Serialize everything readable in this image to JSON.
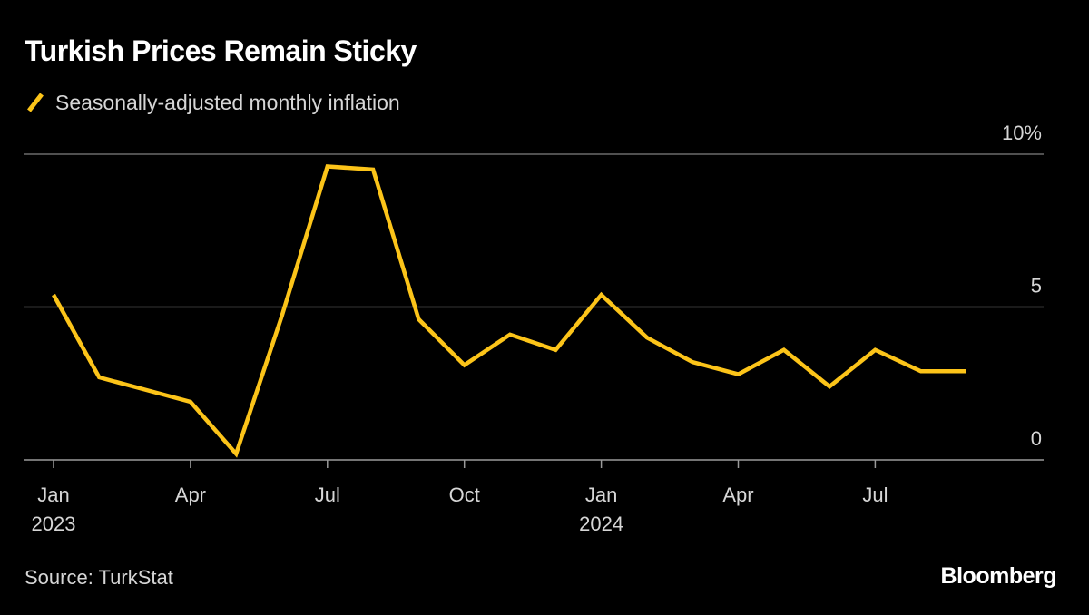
{
  "title": "Turkish Prices Remain Sticky",
  "source": "Source: TurkStat",
  "brand": "Bloomberg",
  "colors": {
    "background": "#000000",
    "series": "#fcc419",
    "grid": "#6b6b6b",
    "axis": "#9a9a9a",
    "text_primary": "#ffffff",
    "text_secondary": "#d6d6d6"
  },
  "chart_data": {
    "type": "line",
    "x": [
      "2023-01",
      "2023-02",
      "2023-03",
      "2023-04",
      "2023-05",
      "2023-06",
      "2023-07",
      "2023-08",
      "2023-09",
      "2023-10",
      "2023-11",
      "2023-12",
      "2024-01",
      "2024-02",
      "2024-03",
      "2024-04",
      "2024-05",
      "2024-06",
      "2024-07",
      "2024-08",
      "2024-09"
    ],
    "series": [
      {
        "name": "Seasonally-adjusted monthly inflation",
        "values": [
          5.4,
          2.7,
          2.3,
          1.9,
          0.2,
          4.7,
          9.6,
          9.5,
          4.6,
          3.1,
          4.1,
          3.6,
          5.4,
          4.0,
          3.2,
          2.8,
          3.6,
          2.4,
          3.6,
          2.9,
          2.9
        ]
      }
    ],
    "ylim": [
      0,
      10
    ],
    "y_ticks": [
      {
        "value": 0,
        "label": "0"
      },
      {
        "value": 5,
        "label": "5"
      },
      {
        "value": 10,
        "label": "10%"
      }
    ],
    "x_ticks": [
      {
        "at": "2023-01",
        "label": "Jan",
        "sublabel": "2023"
      },
      {
        "at": "2023-04",
        "label": "Apr",
        "sublabel": ""
      },
      {
        "at": "2023-07",
        "label": "Jul",
        "sublabel": ""
      },
      {
        "at": "2023-10",
        "label": "Oct",
        "sublabel": ""
      },
      {
        "at": "2024-01",
        "label": "Jan",
        "sublabel": "2024"
      },
      {
        "at": "2024-04",
        "label": "Apr",
        "sublabel": ""
      },
      {
        "at": "2024-07",
        "label": "Jul",
        "sublabel": ""
      }
    ],
    "grid": true,
    "legend_position": "top-left",
    "y_axis_side": "right"
  }
}
